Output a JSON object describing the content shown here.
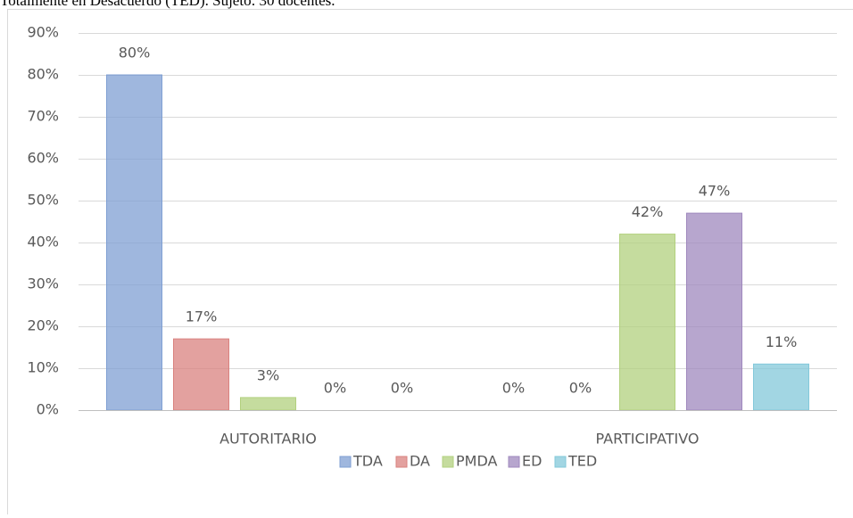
{
  "chart_data": {
    "type": "bar",
    "caption": "Totalmente en Desacuerdo (TED). Sujeto: 30 docentes.",
    "categories": [
      "AUTORITARIO",
      "PARTICIPATIVO"
    ],
    "series": [
      {
        "name": "TDA",
        "color": "#7f9fd3",
        "values": [
          80,
          0
        ],
        "value_labels": [
          "80%",
          "0%"
        ]
      },
      {
        "name": "DA",
        "color": "#d9827f",
        "values": [
          17,
          0
        ],
        "value_labels": [
          "17%",
          "0%"
        ]
      },
      {
        "name": "PMDA",
        "color": "#b2d07e",
        "values": [
          3,
          42
        ],
        "value_labels": [
          "3%",
          "42%"
        ]
      },
      {
        "name": "ED",
        "color": "#9f88bd",
        "values": [
          0,
          47
        ],
        "value_labels": [
          "0%",
          "47%"
        ]
      },
      {
        "name": "TED",
        "color": "#83c8da",
        "values": [
          0,
          11
        ],
        "value_labels": [
          "0%",
          "11%"
        ]
      }
    ],
    "ylim": [
      0,
      90
    ],
    "yticks": [
      {
        "value": 0,
        "label": "0%"
      },
      {
        "value": 10,
        "label": "10%"
      },
      {
        "value": 20,
        "label": "20%"
      },
      {
        "value": 30,
        "label": "30%"
      },
      {
        "value": 40,
        "label": "40%"
      },
      {
        "value": 50,
        "label": "50%"
      },
      {
        "value": 60,
        "label": "60%"
      },
      {
        "value": 70,
        "label": "70%"
      },
      {
        "value": 80,
        "label": "80%"
      },
      {
        "value": 90,
        "label": "90%"
      }
    ],
    "grid": true,
    "legend": "bottom"
  }
}
